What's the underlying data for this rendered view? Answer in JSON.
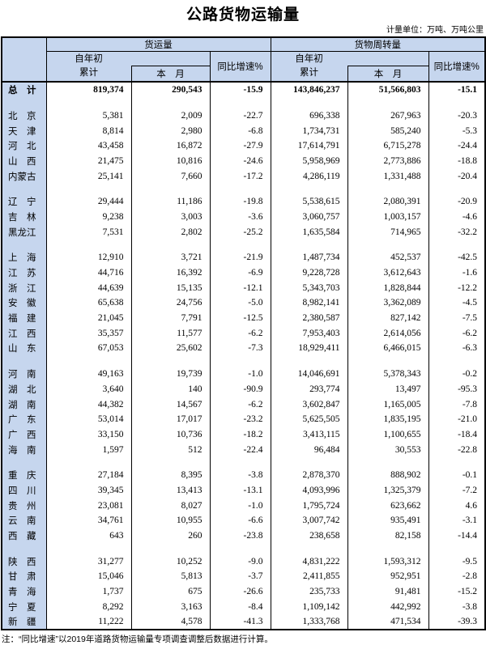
{
  "page": {
    "title": "公路货物运输量",
    "unit_note": "计量单位：万吨、万吨公里",
    "footnote": "注：“同比增速”以2019年道路货物运输量专项调查调整后数据进行计算。"
  },
  "colors": {
    "header_bg": "#C6D6EE",
    "border": "#000000",
    "text": "#000000"
  },
  "table": {
    "columns": {
      "group1": "货运量",
      "group2": "货物周转量",
      "cumulative": [
        "自年初",
        "累计"
      ],
      "month": "本　月",
      "yoy": "同比增速%"
    },
    "total": {
      "label": "总　计",
      "values": [
        "819,374",
        "290,543",
        "-15.9",
        "143,846,237",
        "51,566,803",
        "-15.1"
      ]
    },
    "groups": [
      {
        "rows": [
          {
            "label": "北　京",
            "values": [
              "5,381",
              "2,009",
              "-22.7",
              "696,338",
              "267,963",
              "-20.3"
            ]
          },
          {
            "label": "天　津",
            "values": [
              "8,814",
              "2,980",
              "-6.8",
              "1,734,731",
              "585,240",
              "-5.3"
            ]
          },
          {
            "label": "河　北",
            "values": [
              "43,458",
              "16,872",
              "-27.9",
              "17,614,791",
              "6,715,278",
              "-24.4"
            ]
          },
          {
            "label": "山　西",
            "values": [
              "21,475",
              "10,816",
              "-24.6",
              "5,958,969",
              "2,773,886",
              "-18.8"
            ]
          },
          {
            "label": "内蒙古",
            "values": [
              "25,141",
              "7,660",
              "-17.2",
              "4,286,119",
              "1,331,488",
              "-20.4"
            ]
          }
        ]
      },
      {
        "rows": [
          {
            "label": "辽　宁",
            "values": [
              "29,444",
              "11,186",
              "-19.8",
              "5,538,615",
              "2,080,391",
              "-20.9"
            ]
          },
          {
            "label": "吉　林",
            "values": [
              "9,238",
              "3,003",
              "-3.6",
              "3,060,757",
              "1,003,157",
              "-4.6"
            ]
          },
          {
            "label": "黑龙江",
            "values": [
              "7,531",
              "2,802",
              "-25.2",
              "1,635,584",
              "714,965",
              "-32.2"
            ]
          }
        ]
      },
      {
        "rows": [
          {
            "label": "上　海",
            "values": [
              "12,910",
              "3,721",
              "-21.9",
              "1,487,734",
              "452,537",
              "-42.5"
            ]
          },
          {
            "label": "江　苏",
            "values": [
              "44,716",
              "16,392",
              "-6.9",
              "9,228,728",
              "3,612,643",
              "-1.6"
            ]
          },
          {
            "label": "浙　江",
            "values": [
              "44,639",
              "15,135",
              "-12.1",
              "5,343,703",
              "1,828,844",
              "-12.2"
            ]
          },
          {
            "label": "安　徽",
            "values": [
              "65,638",
              "24,756",
              "-5.0",
              "8,982,141",
              "3,362,089",
              "-4.5"
            ]
          },
          {
            "label": "福　建",
            "values": [
              "21,045",
              "7,791",
              "-12.5",
              "2,380,587",
              "827,142",
              "-7.5"
            ]
          },
          {
            "label": "江　西",
            "values": [
              "35,357",
              "11,577",
              "-6.2",
              "7,953,403",
              "2,614,056",
              "-6.2"
            ]
          },
          {
            "label": "山　东",
            "values": [
              "67,053",
              "25,602",
              "-7.3",
              "18,929,411",
              "6,466,015",
              "-6.3"
            ]
          }
        ]
      },
      {
        "rows": [
          {
            "label": "河　南",
            "values": [
              "49,163",
              "19,739",
              "-1.0",
              "14,046,691",
              "5,378,343",
              "-0.2"
            ]
          },
          {
            "label": "湖　北",
            "values": [
              "3,640",
              "140",
              "-90.9",
              "293,774",
              "13,497",
              "-95.3"
            ]
          },
          {
            "label": "湖　南",
            "values": [
              "44,382",
              "14,567",
              "-6.2",
              "3,602,847",
              "1,165,005",
              "-7.8"
            ]
          },
          {
            "label": "广　东",
            "values": [
              "53,014",
              "17,017",
              "-23.2",
              "5,625,505",
              "1,835,195",
              "-21.0"
            ]
          },
          {
            "label": "广　西",
            "values": [
              "33,150",
              "10,736",
              "-18.2",
              "3,413,115",
              "1,100,655",
              "-18.4"
            ]
          },
          {
            "label": "海　南",
            "values": [
              "1,597",
              "512",
              "-22.4",
              "96,484",
              "30,553",
              "-22.8"
            ]
          }
        ]
      },
      {
        "rows": [
          {
            "label": "重　庆",
            "values": [
              "27,184",
              "8,395",
              "-3.8",
              "2,878,370",
              "888,902",
              "-0.1"
            ]
          },
          {
            "label": "四　川",
            "values": [
              "39,345",
              "13,413",
              "-13.1",
              "4,093,996",
              "1,325,379",
              "-7.2"
            ]
          },
          {
            "label": "贵　州",
            "values": [
              "23,081",
              "8,027",
              "-1.0",
              "1,795,724",
              "623,662",
              "4.6"
            ]
          },
          {
            "label": "云　南",
            "values": [
              "34,761",
              "10,955",
              "-6.6",
              "3,007,742",
              "935,491",
              "-3.1"
            ]
          },
          {
            "label": "西　藏",
            "values": [
              "643",
              "260",
              "-23.8",
              "238,658",
              "82,158",
              "-14.4"
            ]
          }
        ]
      },
      {
        "rows": [
          {
            "label": "陕　西",
            "values": [
              "31,277",
              "10,252",
              "-9.0",
              "4,831,222",
              "1,593,312",
              "-9.5"
            ]
          },
          {
            "label": "甘　肃",
            "values": [
              "15,046",
              "5,813",
              "-3.7",
              "2,411,855",
              "952,951",
              "-2.8"
            ]
          },
          {
            "label": "青　海",
            "values": [
              "1,737",
              "675",
              "-26.6",
              "235,733",
              "91,481",
              "-15.2"
            ]
          },
          {
            "label": "宁　夏",
            "values": [
              "8,292",
              "3,163",
              "-8.4",
              "1,109,142",
              "442,992",
              "-3.8"
            ]
          },
          {
            "label": "新　疆",
            "values": [
              "11,222",
              "4,578",
              "-41.3",
              "1,333,768",
              "471,534",
              "-39.3"
            ]
          }
        ]
      }
    ]
  }
}
